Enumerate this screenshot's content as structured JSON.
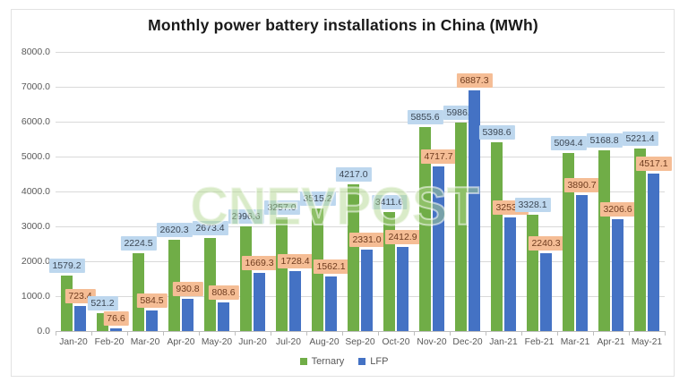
{
  "watermark": "CNEVPOST",
  "colors": {
    "ternary_bar": "#70AD47",
    "lfp_bar": "#4472C4",
    "ternary_label_bg": "#BDD7EE",
    "lfp_label_bg": "#F5BD95",
    "ternary_label_text": "#3B4653",
    "lfp_label_text": "#6E3B1E",
    "gridline": "#D9D9D9",
    "axis_text": "#595959"
  },
  "chart_data": {
    "type": "bar",
    "title": "Monthly power battery installations in China (MWh)",
    "categories": [
      "Jan-20",
      "Feb-20",
      "Mar-20",
      "Apr-20",
      "May-20",
      "Jun-20",
      "Jul-20",
      "Aug-20",
      "Sep-20",
      "Oct-20",
      "Nov-20",
      "Dec-20",
      "Jan-21",
      "Feb-21",
      "Mar-21",
      "Apr-21",
      "May-21"
    ],
    "series": [
      {
        "name": "Ternary",
        "color": "#70AD47",
        "label_bg": "#BDD7EE",
        "label_text": "#3B4653",
        "values": [
          1579.2,
          521.2,
          2224.5,
          2620.3,
          2673.4,
          2996.6,
          3257.0,
          3515.2,
          4217.0,
          3411.6,
          5855.6,
          5986.7,
          5398.6,
          3328.1,
          5094.4,
          5168.8,
          5221.4
        ]
      },
      {
        "name": "LFP",
        "color": "#4472C4",
        "label_bg": "#F5BD95",
        "label_text": "#6E3B1E",
        "values": [
          723.4,
          76.6,
          584.5,
          930.8,
          808.6,
          1669.3,
          1728.4,
          1562.1,
          2331.0,
          2412.9,
          4717.7,
          6887.3,
          3253.9,
          2240.3,
          3890.7,
          3206.6,
          4517.1
        ]
      }
    ],
    "xlabel": "",
    "ylabel": "",
    "ylim": [
      0,
      8000
    ],
    "ytick_step": 1000,
    "ytick_labels": [
      "0.0",
      "1000.0",
      "2000.0",
      "3000.0",
      "4000.0",
      "5000.0",
      "6000.0",
      "7000.0",
      "8000.0"
    ],
    "grid": true,
    "data_labels": true,
    "legend_position": "bottom",
    "legend": [
      "Ternary",
      "LFP"
    ]
  }
}
